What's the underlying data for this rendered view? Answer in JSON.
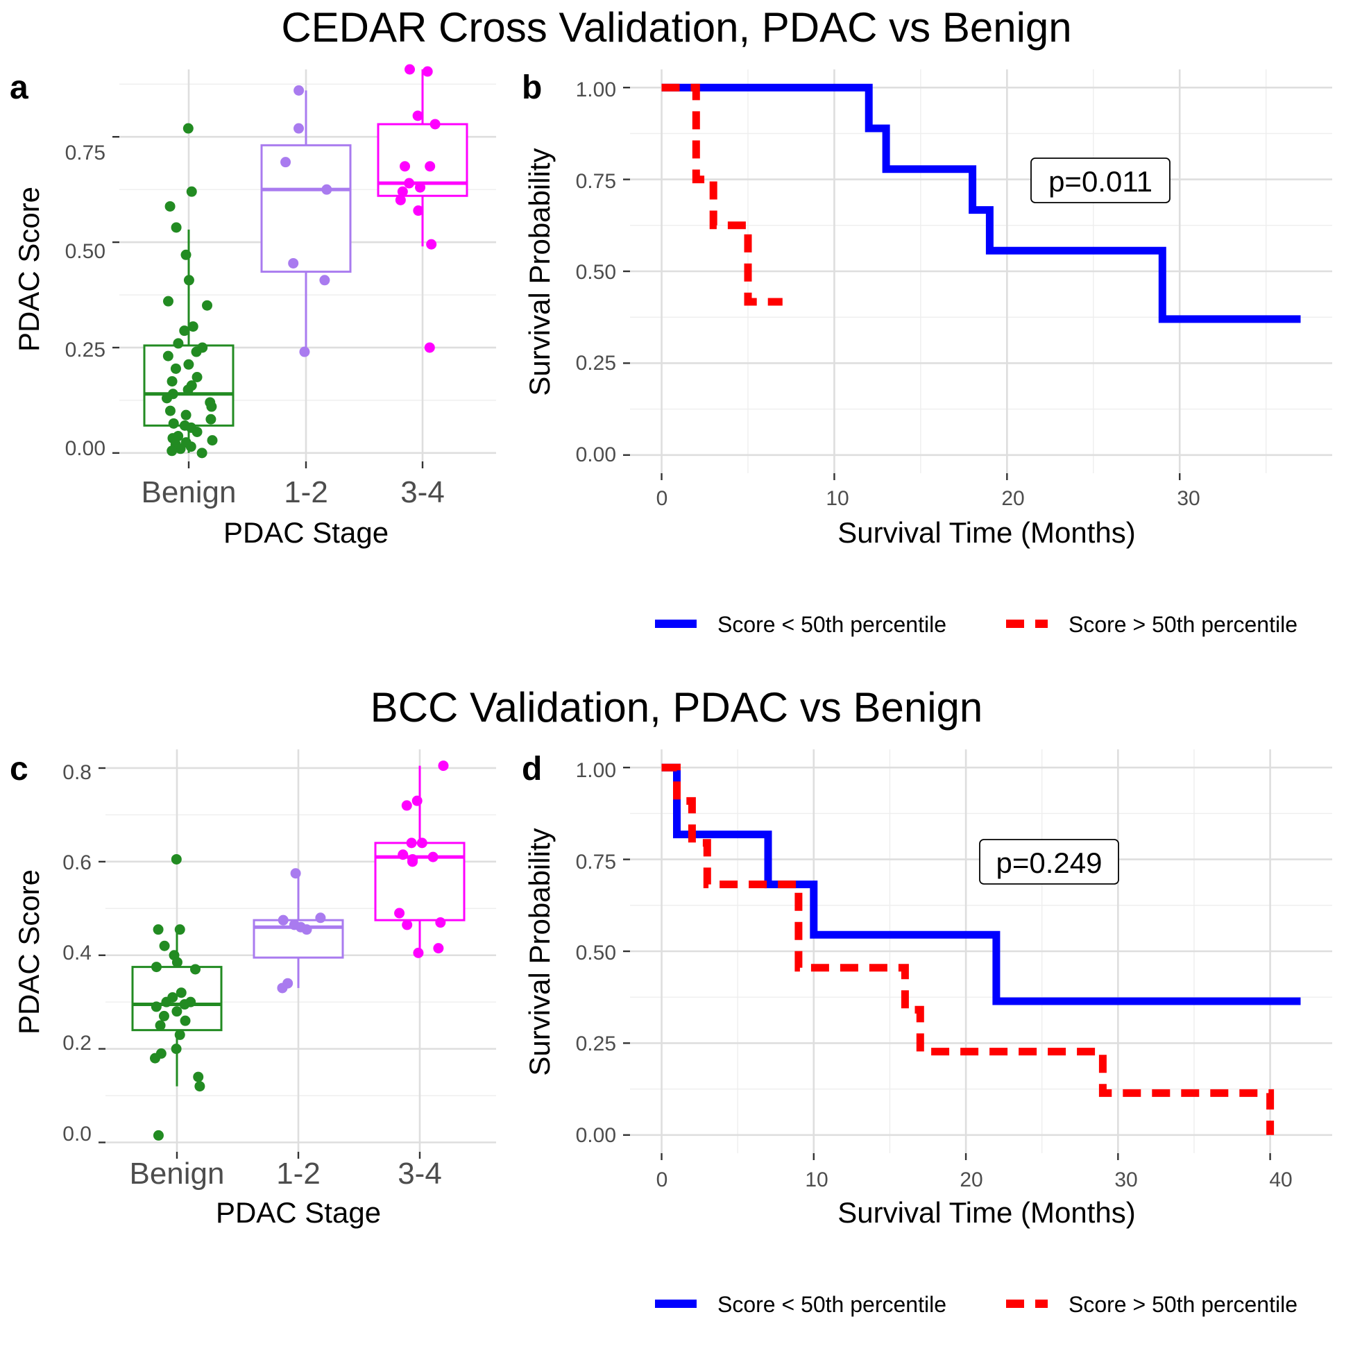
{
  "titles": {
    "top": "CEDAR Cross Validation, PDAC vs Benign",
    "bottom": "BCC Validation, PDAC vs Benign"
  },
  "legend_labels": {
    "low": "Score < 50th percentile",
    "high": "Score > 50th percentile"
  },
  "colors": {
    "benign": "#228B22",
    "stage12": "#A97BEF",
    "stage34": "#FF00FF",
    "low": "#0000FF",
    "high": "#FF0000"
  },
  "chart_data": [
    {
      "panel": "a",
      "type": "box",
      "xlabel": "PDAC Stage",
      "ylabel": "PDAC Score",
      "categories": [
        "Benign",
        "1-2",
        "3-4"
      ],
      "ylim": [
        -0.02,
        0.91
      ],
      "yticks": [
        0,
        0.25,
        0.5,
        0.75
      ],
      "ytick_labels": [
        "0.00",
        "0.25",
        "0.50",
        "0.75"
      ],
      "boxes": [
        {
          "q1": 0.065,
          "median": 0.14,
          "q3": 0.255,
          "whisker_low": 0.0,
          "whisker_high": 0.53
        },
        {
          "q1": 0.43,
          "median": 0.625,
          "q3": 0.73,
          "whisker_low": 0.24,
          "whisker_high": 0.86
        },
        {
          "q1": 0.61,
          "median": 0.64,
          "q3": 0.78,
          "whisker_low": 0.49,
          "whisker_high": 0.91
        }
      ],
      "points": [
        [
          0.77,
          0.62,
          0.585,
          0.535,
          0.47,
          0.41,
          0.36,
          0.35,
          0.3,
          0.29,
          0.26,
          0.25,
          0.24,
          0.23,
          0.21,
          0.2,
          0.18,
          0.17,
          0.16,
          0.15,
          0.14,
          0.13,
          0.12,
          0.11,
          0.1,
          0.09,
          0.08,
          0.07,
          0.065,
          0.06,
          0.05,
          0.04,
          0.035,
          0.03,
          0.025,
          0.02,
          0.015,
          0.01,
          0.005,
          0.0
        ],
        [
          0.86,
          0.77,
          0.69,
          0.625,
          0.45,
          0.41,
          0.24
        ],
        [
          0.91,
          0.905,
          0.8,
          0.78,
          0.68,
          0.68,
          0.64,
          0.63,
          0.62,
          0.6,
          0.575,
          0.495,
          0.25
        ]
      ]
    },
    {
      "panel": "b",
      "type": "line",
      "xlabel": "Survival Time (Months)",
      "ylabel": "Survival Probability",
      "xlim": [
        0,
        37
      ],
      "ylim": [
        0,
        1
      ],
      "xticks": [
        0,
        10,
        20,
        30
      ],
      "yticks": [
        0,
        0.25,
        0.5,
        0.75,
        1
      ],
      "ytick_labels": [
        "0.00",
        "0.25",
        "0.50",
        "0.75",
        "1.00"
      ],
      "annotation": "p=0.011",
      "series": [
        {
          "group": "low",
          "x": [
            0,
            12,
            12,
            13,
            13,
            18,
            18,
            19,
            19,
            29,
            29,
            37
          ],
          "y": [
            1,
            1,
            0.889,
            0.889,
            0.778,
            0.778,
            0.667,
            0.667,
            0.556,
            0.556,
            0.37,
            0.37
          ]
        },
        {
          "group": "high",
          "x": [
            0,
            2,
            2,
            3,
            3,
            5,
            5,
            7
          ],
          "y": [
            1,
            1,
            0.75,
            0.75,
            0.625,
            0.625,
            0.417,
            0.417
          ]
        }
      ]
    },
    {
      "panel": "c",
      "type": "box",
      "xlabel": "PDAC Stage",
      "ylabel": "PDAC Score",
      "categories": [
        "Benign",
        "1-2",
        "3-4"
      ],
      "ylim": [
        -0.02,
        0.84
      ],
      "yticks": [
        0,
        0.2,
        0.4,
        0.6,
        0.8
      ],
      "ytick_labels": [
        "0.0",
        "0.2",
        "0.4",
        "0.6",
        "0.8"
      ],
      "boxes": [
        {
          "q1": 0.24,
          "median": 0.295,
          "q3": 0.375,
          "whisker_low": 0.12,
          "whisker_high": 0.455
        },
        {
          "q1": 0.395,
          "median": 0.46,
          "q3": 0.475,
          "whisker_low": 0.33,
          "whisker_high": 0.575
        },
        {
          "q1": 0.475,
          "median": 0.61,
          "q3": 0.64,
          "whisker_low": 0.41,
          "whisker_high": 0.805
        }
      ],
      "points": [
        [
          0.605,
          0.455,
          0.455,
          0.42,
          0.4,
          0.385,
          0.375,
          0.37,
          0.32,
          0.31,
          0.3,
          0.3,
          0.295,
          0.29,
          0.28,
          0.27,
          0.26,
          0.25,
          0.23,
          0.2,
          0.19,
          0.18,
          0.14,
          0.12,
          0.015
        ],
        [
          0.575,
          0.48,
          0.475,
          0.465,
          0.46,
          0.455,
          0.34,
          0.33
        ],
        [
          0.805,
          0.73,
          0.72,
          0.64,
          0.64,
          0.615,
          0.61,
          0.605,
          0.6,
          0.49,
          0.47,
          0.465,
          0.415,
          0.405
        ]
      ]
    },
    {
      "panel": "d",
      "type": "line",
      "xlabel": "Survival Time (Months)",
      "ylabel": "Survival Probability",
      "xlim": [
        0,
        42
      ],
      "ylim": [
        0,
        1
      ],
      "xticks": [
        0,
        10,
        20,
        30,
        40
      ],
      "yticks": [
        0,
        0.25,
        0.5,
        0.75,
        1
      ],
      "ytick_labels": [
        "0.00",
        "0.25",
        "0.50",
        "0.75",
        "1.00"
      ],
      "annotation": "p=0.249",
      "series": [
        {
          "group": "low",
          "x": [
            0,
            1,
            1,
            7,
            7,
            10,
            10,
            22,
            22,
            42
          ],
          "y": [
            1,
            1,
            0.818,
            0.818,
            0.682,
            0.682,
            0.545,
            0.545,
            0.364,
            0.364
          ]
        },
        {
          "group": "high",
          "x": [
            0,
            1,
            1,
            2,
            2,
            3,
            3,
            9,
            9,
            16,
            16,
            17,
            17,
            29,
            29,
            40,
            40
          ],
          "y": [
            1,
            1,
            0.909,
            0.909,
            0.795,
            0.795,
            0.682,
            0.682,
            0.455,
            0.455,
            0.341,
            0.341,
            0.227,
            0.227,
            0.114,
            0.114,
            0
          ]
        }
      ]
    }
  ]
}
